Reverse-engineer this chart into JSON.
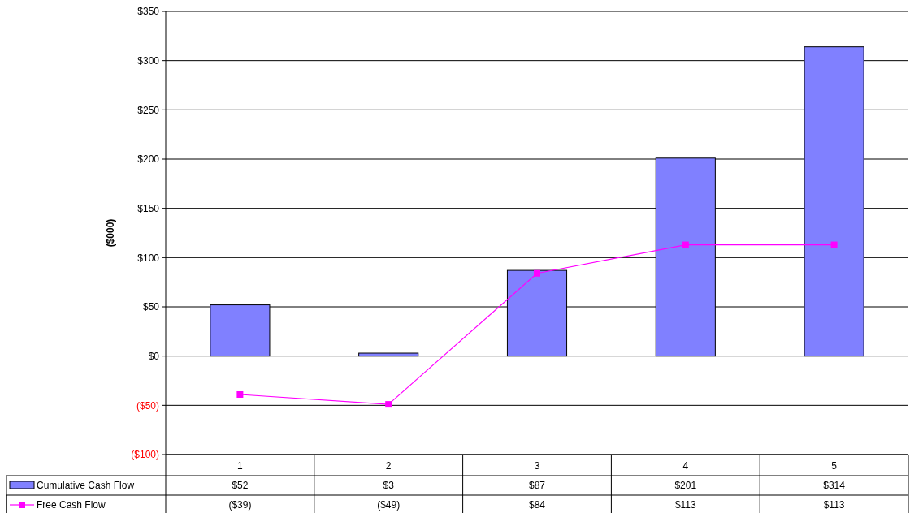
{
  "chart_data": {
    "type": "bar",
    "ylabel": "($000)",
    "categories": [
      "1",
      "2",
      "3",
      "4",
      "5"
    ],
    "series": [
      {
        "name": "Cumulative Cash Flow",
        "color": "#8080ff",
        "values": [
          52,
          3,
          87,
          201,
          314
        ],
        "value_labels": [
          "$52",
          "$3",
          "$87",
          "$201",
          "$314"
        ]
      },
      {
        "name": "Free Cash Flow",
        "type": "line",
        "color": "#ff00ff",
        "marker": "square",
        "values": [
          -39,
          -49,
          84,
          113,
          113
        ],
        "value_labels": [
          "($39)",
          "($49)",
          "$84",
          "$113",
          "$113"
        ]
      }
    ],
    "ylim": [
      -100,
      350
    ],
    "yticks": [
      {
        "value": -100,
        "label": "($100)"
      },
      {
        "value": -50,
        "label": "($50)"
      },
      {
        "value": 0,
        "label": "$0"
      },
      {
        "value": 50,
        "label": "$50"
      },
      {
        "value": 100,
        "label": "$100"
      },
      {
        "value": 150,
        "label": "$150"
      },
      {
        "value": 200,
        "label": "$200"
      },
      {
        "value": 250,
        "label": "$250"
      },
      {
        "value": 300,
        "label": "$300"
      },
      {
        "value": 350,
        "label": "$350"
      }
    ],
    "grid": "y",
    "legend": "bottom"
  }
}
